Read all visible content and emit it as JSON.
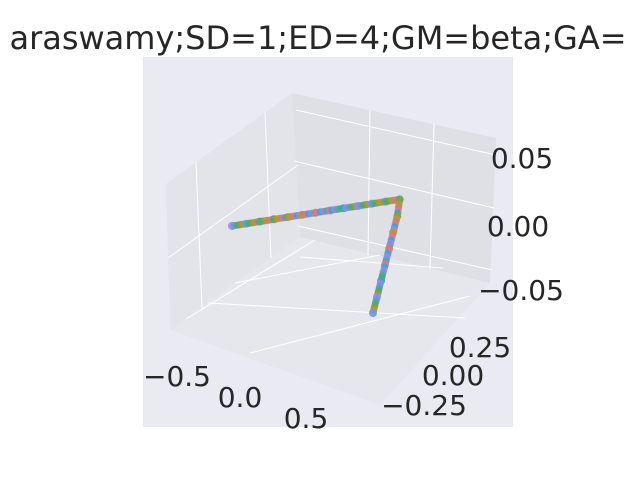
{
  "chart_data": {
    "type": "scatter",
    "projection": "3d",
    "title": "araswamy;SD=1;ED=4;GM=beta;GA=",
    "grid": true,
    "xlim": [
      -0.75,
      1.0
    ],
    "ylim": [
      -0.35,
      0.45
    ],
    "zlim": [
      -0.075,
      0.075
    ],
    "xticks": [
      "−0.5",
      "0.0",
      "0.5"
    ],
    "yticks": [
      "−0.25",
      "0.00",
      "0.25"
    ],
    "zticks": [
      "−0.05",
      "0.00",
      "0.05"
    ],
    "series": [
      {
        "points": [
          {
            "x": -0.62,
            "y": 0.02,
            "z": 0.0
          },
          {
            "x": -0.5,
            "y": 0.02,
            "z": 0.0
          },
          {
            "x": -0.38,
            "y": 0.02,
            "z": 0.0
          },
          {
            "x": -0.26,
            "y": 0.02,
            "z": 0.0
          },
          {
            "x": -0.14,
            "y": 0.02,
            "z": 0.0
          },
          {
            "x": -0.02,
            "y": 0.02,
            "z": 0.0
          },
          {
            "x": 0.1,
            "y": 0.02,
            "z": 0.0
          },
          {
            "x": 0.22,
            "y": 0.02,
            "z": 0.0
          },
          {
            "x": 0.34,
            "y": 0.02,
            "z": 0.0
          },
          {
            "x": 0.46,
            "y": 0.02,
            "z": 0.0
          },
          {
            "x": 0.58,
            "y": 0.02,
            "z": 0.0
          },
          {
            "x": 0.7,
            "y": 0.02,
            "z": 0.0
          },
          {
            "x": 0.82,
            "y": 0.02,
            "z": 0.0
          },
          {
            "x": 0.84,
            "y": 0.0,
            "z": -0.01
          },
          {
            "x": 0.84,
            "y": -0.03,
            "z": -0.02
          },
          {
            "x": 0.84,
            "y": -0.06,
            "z": -0.03
          },
          {
            "x": 0.84,
            "y": -0.09,
            "z": -0.04
          },
          {
            "x": 0.84,
            "y": -0.12,
            "z": -0.05
          },
          {
            "x": 0.84,
            "y": -0.15,
            "z": -0.06
          },
          {
            "x": 0.84,
            "y": -0.18,
            "z": -0.07
          }
        ]
      }
    ]
  },
  "colors": {
    "pane": "#eaeaf2",
    "grid": "#ffffff",
    "text": "#262626",
    "points": [
      "#9b87e8",
      "#6c9ad8",
      "#4fa88a",
      "#5aa36a",
      "#8fa03a",
      "#b9963d",
      "#c48368",
      "#d17a9a",
      "#34a8c8"
    ]
  }
}
